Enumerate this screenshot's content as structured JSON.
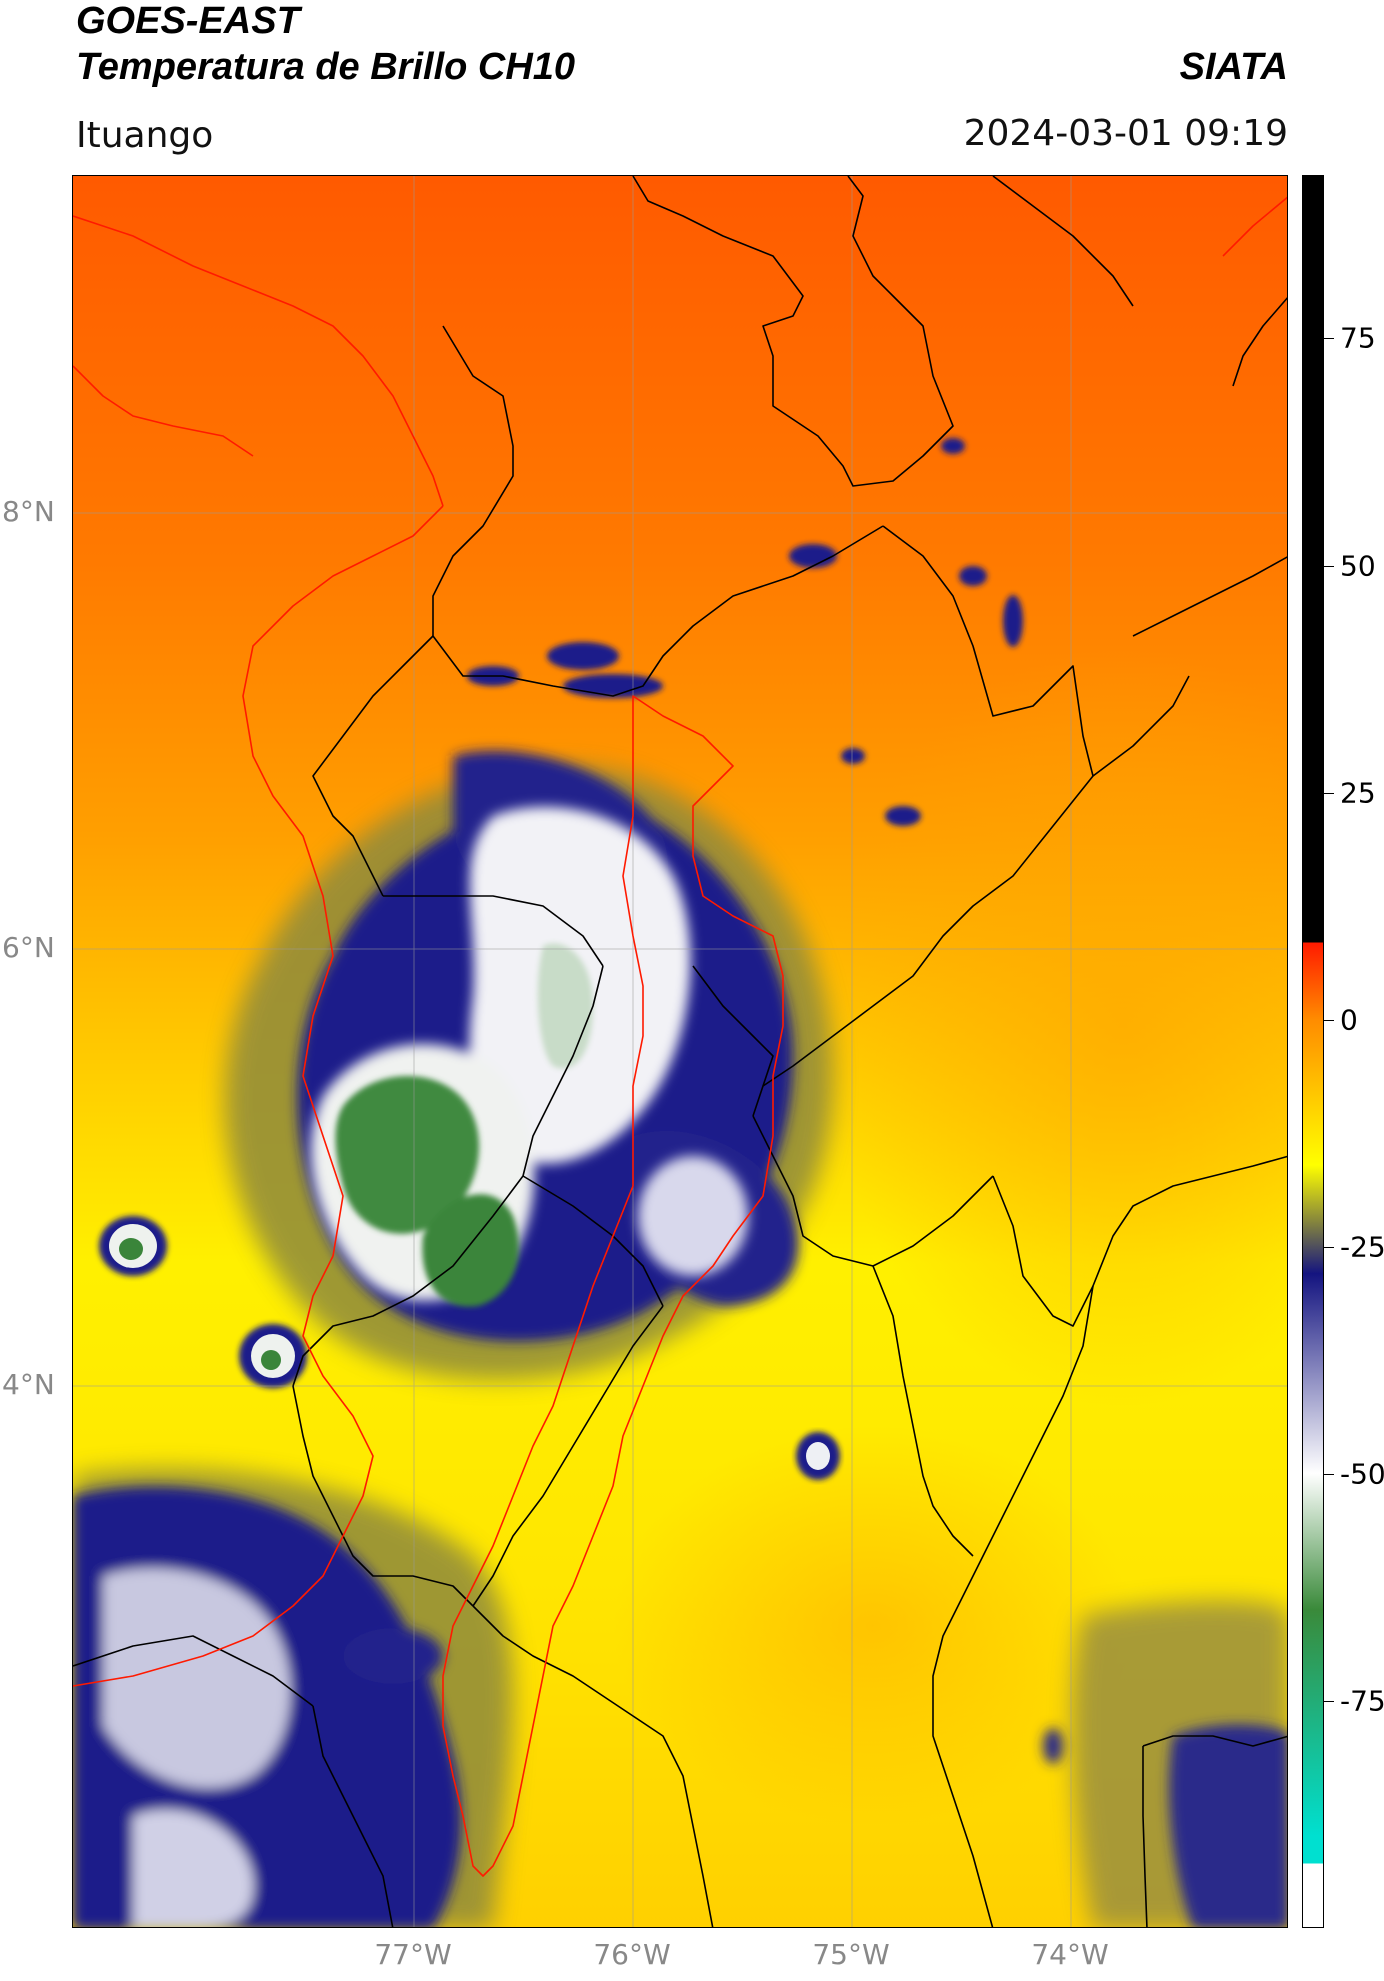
{
  "header": {
    "title_line1": "GOES-EAST",
    "title_line2": "Temperatura de Brillo CH10",
    "brand": "SIATA",
    "location": "Ituango",
    "datetime": "2024-03-01 09:19"
  },
  "map": {
    "lat_ticks": [
      {
        "label": "8°N",
        "value": 8
      },
      {
        "label": "6°N",
        "value": 6
      },
      {
        "label": "4°N",
        "value": 4
      }
    ],
    "lon_ticks": [
      {
        "label": "77°W",
        "value": -77
      },
      {
        "label": "76°W",
        "value": -76
      },
      {
        "label": "75°W",
        "value": -75
      },
      {
        "label": "74°W",
        "value": -74
      }
    ]
  },
  "colorbar": {
    "range": [
      -100,
      93
    ],
    "ticks": [
      {
        "label": "75",
        "value": 75
      },
      {
        "label": "50",
        "value": 50
      },
      {
        "label": "25",
        "value": 25
      },
      {
        "label": "0",
        "value": 0
      },
      {
        "label": "-25",
        "value": -25
      },
      {
        "label": "-50",
        "value": -50
      },
      {
        "label": "-75",
        "value": -75
      }
    ],
    "colors": {
      "black": "#000000",
      "red": "#ff1a00",
      "orange": "#ff8c00",
      "yellow": "#ffff00",
      "olive": "#8a8a3a",
      "navy": "#141480",
      "white": "#ffffff",
      "green": "#3a8a3a",
      "cyan": "#00e0d0"
    }
  }
}
